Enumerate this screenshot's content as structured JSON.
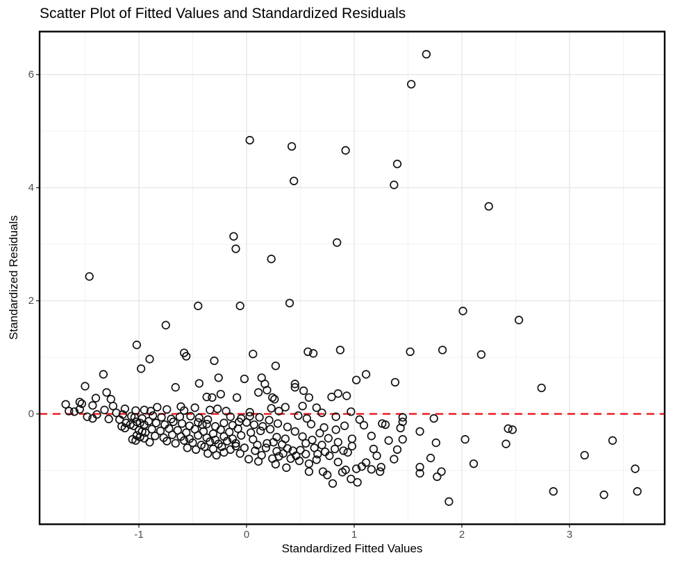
{
  "title": "Scatter Plot of Fitted Values and Standardized Residuals",
  "axes": {
    "x": {
      "label": "Standardized Fitted Values",
      "ticks": [
        "-1",
        "0",
        "1",
        "2",
        "3"
      ]
    },
    "y": {
      "label": "Standardized Residuals",
      "ticks": [
        "0",
        "2",
        "4",
        "6"
      ]
    }
  },
  "colors": {
    "reference_line": "#ED1F24",
    "point_stroke": "#111111",
    "grid_major": "#e4e4e4",
    "grid_minor": "#f0f0f0",
    "panel_border": "#000000",
    "tick_text": "#4d4d4d"
  },
  "chart_data": {
    "type": "scatter",
    "title": "Scatter Plot of Fitted Values and Standardized Residuals",
    "xlabel": "Standardized Fitted Values",
    "ylabel": "Standardized Residuals",
    "xlim": [
      -1.93,
      3.89
    ],
    "ylim": [
      -1.95,
      6.76
    ],
    "x_ticks": [
      -1,
      0,
      1,
      2,
      3
    ],
    "y_ticks": [
      0,
      2,
      4,
      6
    ],
    "x_minor_ticks": [
      -1.5,
      -0.5,
      0.5,
      1.5,
      2.5,
      3.5
    ],
    "y_minor_ticks": [
      -1,
      1,
      3,
      5
    ],
    "grid": true,
    "legend": false,
    "marker": "open-circle",
    "reference_line": {
      "type": "horizontal",
      "y": 0,
      "style": "dashed"
    },
    "points": [
      [
        1.67,
        6.36
      ],
      [
        1.53,
        5.83
      ],
      [
        0.03,
        4.84
      ],
      [
        0.42,
        4.73
      ],
      [
        0.92,
        4.66
      ],
      [
        1.4,
        4.42
      ],
      [
        0.44,
        4.12
      ],
      [
        1.37,
        4.05
      ],
      [
        2.25,
        3.67
      ],
      [
        -0.12,
        3.14
      ],
      [
        0.84,
        3.03
      ],
      [
        -0.1,
        2.92
      ],
      [
        0.23,
        2.74
      ],
      [
        -1.46,
        2.43
      ],
      [
        0.4,
        1.96
      ],
      [
        -0.45,
        1.91
      ],
      [
        -0.06,
        1.91
      ],
      [
        2.01,
        1.82
      ],
      [
        2.53,
        1.66
      ],
      [
        -0.75,
        1.57
      ],
      [
        -1.02,
        1.22
      ],
      [
        0.87,
        1.13
      ],
      [
        1.82,
        1.13
      ],
      [
        1.52,
        1.1
      ],
      [
        0.57,
        1.1
      ],
      [
        0.62,
        1.07
      ],
      [
        0.06,
        1.06
      ],
      [
        2.18,
        1.05
      ],
      [
        -0.58,
        1.08
      ],
      [
        -0.56,
        1.02
      ],
      [
        -0.9,
        0.97
      ],
      [
        -0.3,
        0.94
      ],
      [
        0.27,
        0.85
      ],
      [
        -0.98,
        0.8
      ],
      [
        -1.33,
        0.7
      ],
      [
        1.11,
        0.7
      ],
      [
        -0.26,
        0.64
      ],
      [
        -0.02,
        0.62
      ],
      [
        0.14,
        0.64
      ],
      [
        1.02,
        0.6
      ],
      [
        -1.5,
        0.49
      ],
      [
        0.45,
        0.53
      ],
      [
        1.38,
        0.56
      ],
      [
        -0.66,
        0.47
      ],
      [
        -0.44,
        0.54
      ],
      [
        0.17,
        0.53
      ],
      [
        2.74,
        0.46
      ],
      [
        0.45,
        0.47
      ],
      [
        0.19,
        0.42
      ],
      [
        0.53,
        0.41
      ],
      [
        0.11,
        0.38
      ],
      [
        -1.3,
        0.38
      ],
      [
        0.85,
        0.36
      ],
      [
        -0.24,
        0.35
      ],
      [
        0.93,
        0.32
      ],
      [
        0.24,
        0.29
      ],
      [
        -0.37,
        0.3
      ],
      [
        -0.32,
        0.29
      ],
      [
        0.79,
        0.3
      ],
      [
        0.58,
        0.29
      ],
      [
        -0.09,
        0.29
      ],
      [
        0.26,
        0.26
      ],
      [
        -1.26,
        0.26
      ],
      [
        -1.4,
        0.28
      ],
      [
        -1.55,
        0.21
      ],
      [
        -1.53,
        0.18
      ],
      [
        -1.68,
        0.17
      ],
      [
        -1.43,
        0.15
      ],
      [
        -1.24,
        0.14
      ],
      [
        0.52,
        0.14
      ],
      [
        0.23,
        0.1
      ],
      [
        -0.83,
        0.12
      ],
      [
        -0.61,
        0.13
      ],
      [
        -0.48,
        0.11
      ],
      [
        0.36,
        0.12
      ],
      [
        0.65,
        0.11
      ],
      [
        -1.65,
        0.05
      ],
      [
        -1.6,
        0.04
      ],
      [
        -1.55,
        0.08
      ],
      [
        -1.21,
        0.02
      ],
      [
        -1.32,
        0.07
      ],
      [
        -1.13,
        0.09
      ],
      [
        -1.03,
        0.06
      ],
      [
        -0.95,
        0.07
      ],
      [
        -0.89,
        0.05
      ],
      [
        -0.74,
        0.08
      ],
      [
        -0.58,
        0.06
      ],
      [
        -0.34,
        0.07
      ],
      [
        -0.19,
        0.05
      ],
      [
        -0.27,
        0.09
      ],
      [
        0.97,
        0.04
      ],
      [
        0.03,
        0.03
      ],
      [
        0.3,
        0.05
      ],
      [
        0.7,
        0.02
      ],
      [
        -1.15,
        -0.01
      ],
      [
        -1.39,
        -0.01
      ],
      [
        0.03,
        -0.04
      ],
      [
        -1.07,
        -0.04
      ],
      [
        1.45,
        -0.06
      ],
      [
        -1.04,
        -0.06
      ],
      [
        -1.43,
        -0.08
      ],
      [
        -1.18,
        -0.1
      ],
      [
        1.74,
        -0.08
      ],
      [
        -1.48,
        -0.05
      ],
      [
        -0.87,
        -0.03
      ],
      [
        -0.79,
        -0.06
      ],
      [
        -0.7,
        -0.09
      ],
      [
        -0.52,
        -0.04
      ],
      [
        -0.44,
        -0.07
      ],
      [
        -0.36,
        -0.1
      ],
      [
        -0.15,
        -0.05
      ],
      [
        -0.05,
        -0.08
      ],
      [
        0.12,
        -0.06
      ],
      [
        0.21,
        -0.11
      ],
      [
        0.48,
        -0.03
      ],
      [
        0.56,
        -0.08
      ],
      [
        0.83,
        -0.05
      ],
      [
        1.05,
        -0.1
      ],
      [
        -1.28,
        -0.09
      ],
      [
        -0.97,
        -0.08
      ],
      [
        -0.62,
        -0.05
      ],
      [
        -0.07,
        -0.14
      ],
      [
        1.45,
        -0.14
      ],
      [
        -1.12,
        -0.16
      ],
      [
        1.26,
        -0.17
      ],
      [
        -0.41,
        -0.19
      ],
      [
        1.29,
        -0.19
      ],
      [
        -1.08,
        -0.19
      ],
      [
        0.07,
        -0.19
      ],
      [
        1.09,
        -0.2
      ],
      [
        -1.16,
        -0.22
      ],
      [
        -1.05,
        -0.21
      ],
      [
        -1.13,
        -0.25
      ],
      [
        1.43,
        -0.25
      ],
      [
        -1.02,
        -0.14
      ],
      [
        -0.99,
        -0.16
      ],
      [
        -0.95,
        -0.19
      ],
      [
        -0.91,
        -0.13
      ],
      [
        -0.84,
        -0.16
      ],
      [
        -0.76,
        -0.19
      ],
      [
        -0.68,
        -0.14
      ],
      [
        -0.6,
        -0.17
      ],
      [
        -0.53,
        -0.21
      ],
      [
        -0.45,
        -0.15
      ],
      [
        -0.37,
        -0.18
      ],
      [
        -0.29,
        -0.22
      ],
      [
        -0.21,
        -0.16
      ],
      [
        -0.13,
        -0.2
      ],
      [
        0.0,
        -0.15
      ],
      [
        0.15,
        -0.22
      ],
      [
        0.29,
        -0.17
      ],
      [
        0.38,
        -0.23
      ],
      [
        0.6,
        -0.18
      ],
      [
        0.72,
        -0.24
      ],
      [
        0.91,
        -0.21
      ],
      [
        -1.0,
        -0.29
      ],
      [
        -0.97,
        -0.31
      ],
      [
        -0.94,
        -0.33
      ],
      [
        -0.31,
        -0.35
      ],
      [
        0.13,
        -0.3
      ],
      [
        -0.88,
        -0.27
      ],
      [
        -0.8,
        -0.3
      ],
      [
        -0.72,
        -0.26
      ],
      [
        -0.64,
        -0.29
      ],
      [
        -0.56,
        -0.33
      ],
      [
        -0.48,
        -0.27
      ],
      [
        -0.4,
        -0.31
      ],
      [
        -0.24,
        -0.28
      ],
      [
        -0.16,
        -0.32
      ],
      [
        -0.08,
        -0.26
      ],
      [
        0.04,
        -0.33
      ],
      [
        0.22,
        -0.27
      ],
      [
        0.45,
        -0.31
      ],
      [
        0.68,
        -0.34
      ],
      [
        0.83,
        -0.28
      ],
      [
        1.61,
        -0.31
      ],
      [
        2.43,
        -0.26
      ],
      [
        2.47,
        -0.28
      ],
      [
        -1.02,
        -0.38
      ],
      [
        -0.99,
        -0.41
      ],
      [
        -0.95,
        -0.43
      ],
      [
        -1.06,
        -0.45
      ],
      [
        -1.03,
        -0.47
      ],
      [
        0.28,
        -0.41
      ],
      [
        1.16,
        -0.39
      ],
      [
        2.03,
        -0.45
      ],
      [
        1.45,
        -0.45
      ],
      [
        1.32,
        -0.47
      ],
      [
        3.4,
        -0.47
      ],
      [
        1.76,
        -0.51
      ],
      [
        0.19,
        -0.52
      ],
      [
        2.41,
        -0.53
      ],
      [
        -0.85,
        -0.39
      ],
      [
        -0.77,
        -0.42
      ],
      [
        -0.69,
        -0.37
      ],
      [
        -0.61,
        -0.4
      ],
      [
        -0.53,
        -0.44
      ],
      [
        -0.45,
        -0.38
      ],
      [
        -0.37,
        -0.42
      ],
      [
        -0.29,
        -0.46
      ],
      [
        -0.21,
        -0.4
      ],
      [
        -0.13,
        -0.44
      ],
      [
        -0.05,
        -0.38
      ],
      [
        0.06,
        -0.45
      ],
      [
        0.36,
        -0.44
      ],
      [
        0.52,
        -0.4
      ],
      [
        0.61,
        -0.46
      ],
      [
        0.76,
        -0.43
      ],
      [
        0.98,
        -0.44
      ],
      [
        -0.9,
        -0.5
      ],
      [
        -0.74,
        -0.48
      ],
      [
        -0.66,
        -0.52
      ],
      [
        -0.58,
        -0.47
      ],
      [
        -0.5,
        -0.51
      ],
      [
        -0.42,
        -0.55
      ],
      [
        -0.34,
        -0.49
      ],
      [
        -0.26,
        -0.53
      ],
      [
        -0.18,
        -0.48
      ],
      [
        -0.1,
        -0.52
      ],
      [
        0.1,
        -0.55
      ],
      [
        0.25,
        -0.5
      ],
      [
        0.33,
        -0.54
      ],
      [
        0.55,
        -0.52
      ],
      [
        0.7,
        -0.55
      ],
      [
        0.85,
        -0.5
      ],
      [
        -0.1,
        -0.57
      ],
      [
        0.43,
        -0.65
      ],
      [
        -0.21,
        -0.68
      ],
      [
        0.98,
        -0.57
      ],
      [
        0.9,
        -0.65
      ],
      [
        0.94,
        -0.68
      ],
      [
        1.18,
        -0.62
      ],
      [
        1.4,
        -0.63
      ],
      [
        1.21,
        -0.74
      ],
      [
        0.55,
        -0.71
      ],
      [
        3.14,
        -0.73
      ],
      [
        -0.55,
        -0.6
      ],
      [
        -0.47,
        -0.63
      ],
      [
        -0.39,
        -0.58
      ],
      [
        -0.31,
        -0.62
      ],
      [
        -0.23,
        -0.58
      ],
      [
        -0.15,
        -0.63
      ],
      [
        -0.02,
        -0.6
      ],
      [
        0.08,
        -0.65
      ],
      [
        0.18,
        -0.6
      ],
      [
        0.28,
        -0.66
      ],
      [
        0.38,
        -0.61
      ],
      [
        0.5,
        -0.64
      ],
      [
        0.63,
        -0.6
      ],
      [
        0.73,
        -0.67
      ],
      [
        0.82,
        -0.62
      ],
      [
        -0.36,
        -0.7
      ],
      [
        -0.28,
        -0.73
      ],
      [
        -0.06,
        -0.7
      ],
      [
        0.14,
        -0.73
      ],
      [
        0.34,
        -0.7
      ],
      [
        0.46,
        -0.74
      ],
      [
        0.66,
        -0.71
      ],
      [
        0.3,
        -0.75
      ],
      [
        0.41,
        -0.79
      ],
      [
        0.24,
        -0.79
      ],
      [
        1.37,
        -0.8
      ],
      [
        0.77,
        -0.74
      ],
      [
        0.85,
        -0.85
      ],
      [
        0.27,
        -0.89
      ],
      [
        2.11,
        -0.88
      ],
      [
        1.11,
        -0.86
      ],
      [
        0.58,
        -0.88
      ],
      [
        0.37,
        -0.95
      ],
      [
        0.92,
        -0.99
      ],
      [
        1.25,
        -0.94
      ],
      [
        1.61,
        -0.94
      ],
      [
        3.61,
        -0.97
      ],
      [
        1.02,
        -0.97
      ],
      [
        1.07,
        -0.93
      ],
      [
        1.16,
        -0.98
      ],
      [
        1.71,
        -0.78
      ],
      [
        0.49,
        -0.83
      ],
      [
        0.65,
        -0.81
      ],
      [
        0.11,
        -0.84
      ],
      [
        0.02,
        -0.8
      ],
      [
        0.89,
        -1.03
      ],
      [
        1.24,
        -1.02
      ],
      [
        1.61,
        -1.05
      ],
      [
        1.81,
        -1.02
      ],
      [
        1.77,
        -1.11
      ],
      [
        0.71,
        -1.02
      ],
      [
        0.75,
        -1.08
      ],
      [
        0.8,
        -1.23
      ],
      [
        1.03,
        -1.21
      ],
      [
        0.97,
        -1.15
      ],
      [
        2.85,
        -1.37
      ],
      [
        3.32,
        -1.43
      ],
      [
        3.63,
        -1.37
      ],
      [
        1.88,
        -1.55
      ],
      [
        0.58,
        -1.02
      ]
    ]
  }
}
